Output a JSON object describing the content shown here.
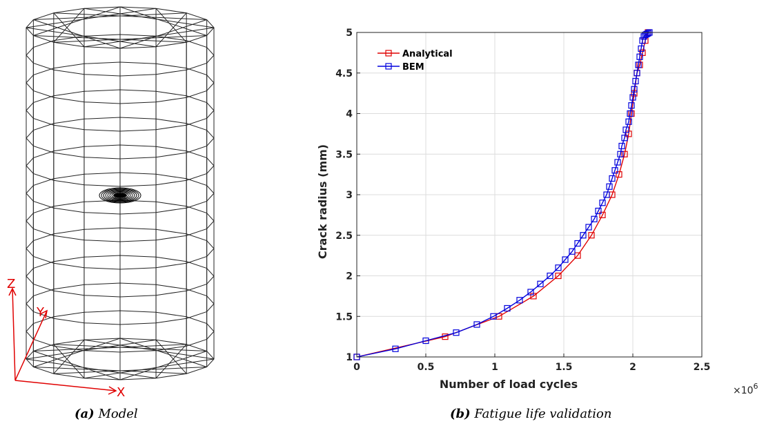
{
  "captions": {
    "left": {
      "tag": "(a)",
      "text": "Model"
    },
    "right": {
      "tag": "(b)",
      "text": "Fatigue life validation"
    }
  },
  "model": {
    "axis_labels": {
      "z": "Z",
      "y": "Y",
      "x": "X"
    },
    "axis_color": "#e00000",
    "mesh_color": "#222222",
    "crack_color": "#000000"
  },
  "chart_data": {
    "type": "line",
    "xlabel": "Number of load cycles",
    "ylabel": "Crack radius (mm)",
    "x_exponent_label": "×10",
    "x_exponent_power": "6",
    "xlim": [
      0,
      2.5
    ],
    "ylim": [
      1,
      5
    ],
    "xticks": [
      0,
      0.5,
      1,
      1.5,
      2,
      2.5
    ],
    "xtick_labels": [
      "0",
      "0.5",
      "1",
      "1.5",
      "2",
      "2.5"
    ],
    "yticks": [
      1,
      1.5,
      2,
      2.5,
      3,
      3.5,
      4,
      4.5,
      5
    ],
    "ytick_labels": [
      "1",
      "1.5",
      "2",
      "2.5",
      "3",
      "3.5",
      "4",
      "4.5",
      "5"
    ],
    "grid": true,
    "legend_position": "top-left",
    "series": [
      {
        "name": "Analytical",
        "color": "#e00000",
        "marker": "square",
        "x": [
          0,
          0.64,
          1.03,
          1.28,
          1.46,
          1.6,
          1.7,
          1.78,
          1.85,
          1.9,
          1.94,
          1.97,
          1.99,
          2.01,
          2.03,
          2.05,
          2.07,
          2.09,
          2.11
        ],
        "y": [
          1,
          1.25,
          1.5,
          1.75,
          2,
          2.25,
          2.5,
          2.75,
          3,
          3.25,
          3.5,
          3.75,
          4,
          4.25,
          4.5,
          4.6,
          4.75,
          4.9,
          5
        ]
      },
      {
        "name": "BEM",
        "color": "#0000dd",
        "marker": "square",
        "x": [
          0,
          0.28,
          0.5,
          0.72,
          0.87,
          0.99,
          1.09,
          1.18,
          1.26,
          1.33,
          1.4,
          1.46,
          1.51,
          1.56,
          1.6,
          1.64,
          1.68,
          1.72,
          1.75,
          1.78,
          1.81,
          1.83,
          1.85,
          1.87,
          1.89,
          1.91,
          1.92,
          1.94,
          1.95,
          1.97,
          1.98,
          1.99,
          2.0,
          2.01,
          2.02,
          2.03,
          2.04,
          2.05,
          2.06,
          2.07,
          2.08,
          2.09,
          2.1,
          2.11,
          2.12
        ],
        "y": [
          1,
          1.1,
          1.2,
          1.3,
          1.4,
          1.5,
          1.6,
          1.7,
          1.8,
          1.9,
          2.0,
          2.1,
          2.2,
          2.3,
          2.4,
          2.5,
          2.6,
          2.7,
          2.8,
          2.9,
          3.0,
          3.1,
          3.2,
          3.3,
          3.4,
          3.5,
          3.6,
          3.7,
          3.8,
          3.9,
          4.0,
          4.1,
          4.2,
          4.3,
          4.4,
          4.5,
          4.6,
          4.7,
          4.8,
          4.9,
          4.95,
          4.97,
          4.98,
          4.99,
          5.0
        ]
      }
    ]
  }
}
